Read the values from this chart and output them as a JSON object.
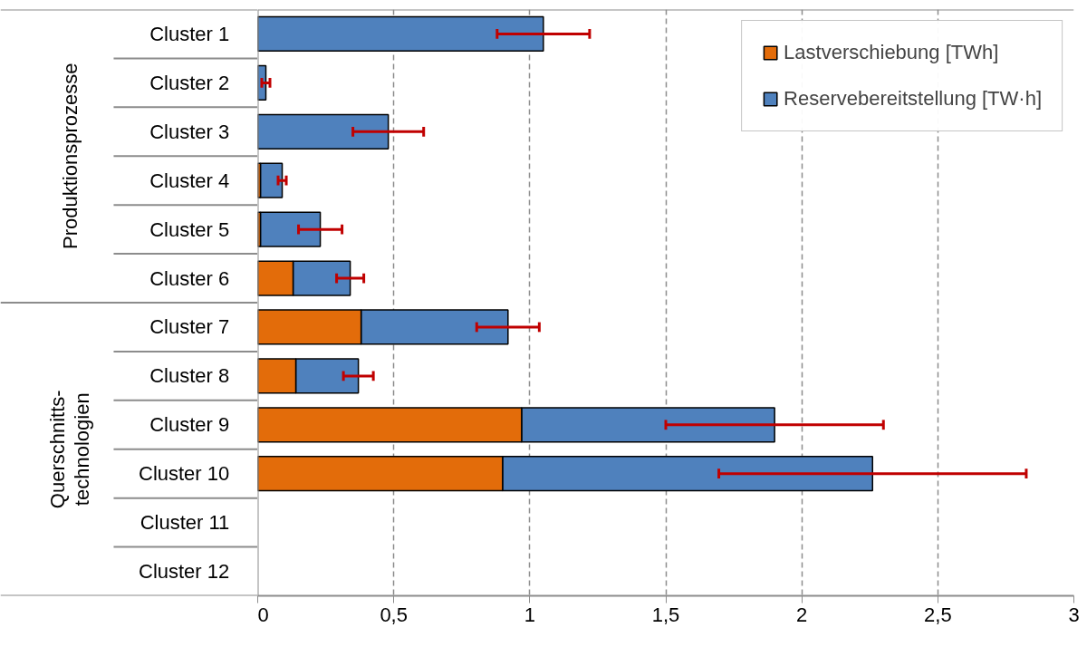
{
  "chart_data": {
    "type": "bar",
    "orientation": "horizontal",
    "stacked": true,
    "categories": [
      "Cluster 1",
      "Cluster 2",
      "Cluster 3",
      "Cluster 4",
      "Cluster 5",
      "Cluster 6",
      "Cluster 7",
      "Cluster 8",
      "Cluster 9",
      "Cluster 10",
      "Cluster 11",
      "Cluster 12"
    ],
    "series": [
      {
        "name": "Lastverschiebung [TWh]",
        "color": "#e36c0a",
        "values": [
          null,
          null,
          null,
          0.01,
          0.01,
          0.13,
          0.38,
          0.14,
          0.97,
          0.9,
          null,
          null
        ]
      },
      {
        "name": "Reservebereitstellung [TW·h]",
        "color": "#4f81bd",
        "values": [
          1.05,
          0.03,
          0.48,
          0.08,
          0.22,
          0.21,
          0.54,
          0.23,
          0.93,
          1.36,
          null,
          null
        ],
        "errors": [
          0.17,
          0.015,
          0.13,
          0.015,
          0.08,
          0.05,
          0.115,
          0.055,
          0.4,
          0.565,
          null,
          null
        ]
      }
    ],
    "xlim": [
      0,
      3
    ],
    "xticks": [
      0,
      {
        "value": 0.5,
        "label": "0,5"
      },
      1,
      {
        "value": 1.5,
        "label": "1,5"
      },
      2,
      {
        "value": 2.5,
        "label": "2,5"
      },
      3
    ],
    "grid": "x",
    "legend": "top right",
    "annotations": [
      "Produktionsprozesse",
      "Querschnitts-\ntechnologien"
    ]
  }
}
